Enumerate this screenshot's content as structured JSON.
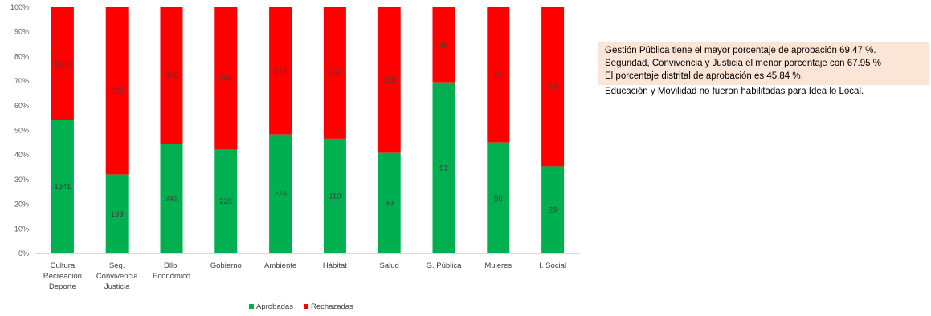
{
  "chart_data": {
    "type": "bar",
    "stacked": "percent",
    "categories": [
      [
        "Cultura",
        "Recreación",
        "Deporte"
      ],
      [
        "Seg.",
        "Convivencia",
        "Justicia"
      ],
      [
        "Dllo.",
        "Económico"
      ],
      [
        "Gobierno"
      ],
      [
        "Ambiente"
      ],
      [
        "Hábitat"
      ],
      [
        "Salud"
      ],
      [
        "G. Pública"
      ],
      [
        "Mujeres"
      ],
      [
        "I. Social"
      ]
    ],
    "series": [
      {
        "name": "Aprobadas",
        "color": "#00b050",
        "values": [
          1341,
          199,
          241,
          225,
          228,
          110,
          89,
          91,
          50,
          29
        ],
        "labels": [
          "1341",
          "199",
          "241",
          "225",
          "228",
          "110",
          "89",
          "91",
          "50",
          "29"
        ]
      },
      {
        "name": "Rechazadas",
        "color": "#ff0000",
        "values": [
          1138,
          422,
          301,
          308,
          244,
          126,
          129,
          40,
          61,
          53
        ],
        "labels": [
          "1138",
          "422",
          "301",
          "308",
          "244",
          "126",
          "129",
          "40",
          "61",
          "53"
        ]
      }
    ],
    "y_ticks": [
      "0%",
      "10%",
      "20%",
      "30%",
      "40%",
      "50%",
      "60%",
      "70%",
      "80%",
      "90%",
      "100%"
    ],
    "ylim": [
      0,
      100
    ],
    "grid": false,
    "legend_position": "bottom"
  },
  "notes": {
    "highlighted": [
      "Gestión Pública tiene el mayor porcentaje de aprobación 69.47 %.",
      "Seguridad, Convivencia y Justicia el menor porcentaje con 67.95 %",
      "El porcentaje distrital de aprobación es 45.84 %."
    ],
    "plain": [
      "Educación y Movilidad no fueron habilitadas para Idea lo Local."
    ]
  }
}
